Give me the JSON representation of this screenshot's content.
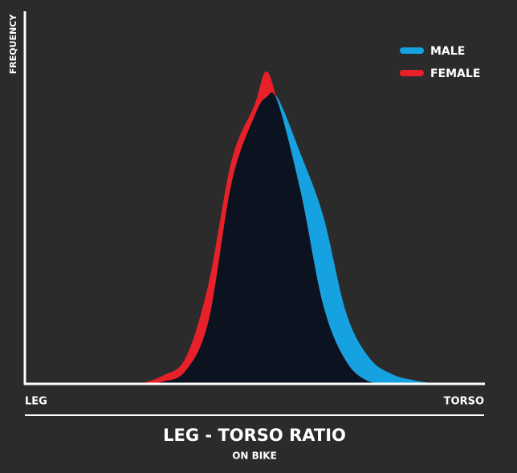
{
  "chart_data": {
    "type": "area",
    "title": "LEG - TORSO RATIO",
    "subtitle": "ON BIKE",
    "y_label": "FREQUENCY",
    "x_start_label": "LEG",
    "x_end_label": "TORSO",
    "x": [
      25,
      30,
      35,
      40,
      45,
      50,
      52.5,
      55,
      60,
      65,
      70,
      75,
      80,
      85,
      90
    ],
    "series": [
      {
        "name": "MALE",
        "color": "#16a2e0",
        "values": [
          0,
          0.6,
          3.5,
          17,
          54,
          72,
          77,
          77,
          62,
          45,
          19,
          7,
          2.6,
          0.9,
          0
        ]
      },
      {
        "name": "FEMALE",
        "color": "#e8202a",
        "values": [
          0,
          2.2,
          7,
          27,
          60,
          75,
          84,
          76,
          52,
          21,
          6,
          0.6,
          0,
          0,
          0
        ]
      }
    ],
    "overlap_color": "#0b1320",
    "xlim": [
      0,
      100
    ],
    "ylim": [
      0,
      100
    ],
    "legend": "upper-right"
  }
}
